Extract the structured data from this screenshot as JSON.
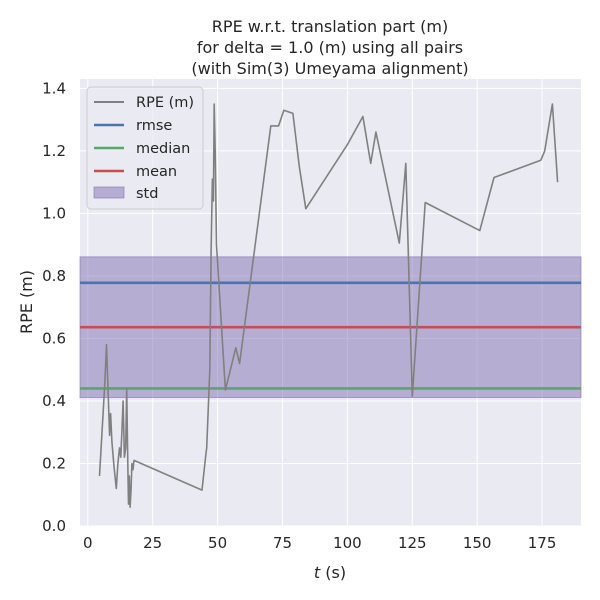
{
  "chart_data": {
    "type": "line",
    "title_lines": [
      "RPE w.r.t. translation part (m)",
      "for delta = 1.0 (m) using all pairs",
      "(with Sim(3) Umeyama alignment)"
    ],
    "xlabel_italic": "t",
    "xlabel_unit": " (s)",
    "ylabel": "RPE (m)",
    "xlim": [
      -3,
      190
    ],
    "ylim": [
      0,
      1.43
    ],
    "xticks": [
      0,
      25,
      50,
      75,
      100,
      125,
      150,
      175
    ],
    "yticks": [
      0.0,
      0.2,
      0.4,
      0.6,
      0.8,
      1.0,
      1.2,
      1.4
    ],
    "xtick_labels": [
      "0",
      "25",
      "50",
      "75",
      "100",
      "125",
      "150",
      "175"
    ],
    "ytick_labels": [
      "0.0",
      "0.2",
      "0.4",
      "0.6",
      "0.8",
      "1.0",
      "1.2",
      "1.4"
    ],
    "grid": true,
    "legend_position": "top-left",
    "series": [
      {
        "name": "RPE (m)",
        "color": "#808080",
        "x": [
          4.5,
          6.5,
          7.2,
          8.4,
          8.8,
          9.3,
          10.1,
          11.0,
          11.6,
          12.2,
          12.7,
          13.2,
          13.6,
          14.1,
          14.6,
          15.0,
          15.4,
          15.7,
          16.0,
          16.3,
          16.7,
          17.0,
          17.4,
          17.8,
          44.0,
          45.5,
          45.8,
          47.0,
          47.5,
          48.0,
          48.4,
          48.7,
          49.1,
          49.6,
          53.0,
          57.0,
          58.5,
          70.5,
          73.5,
          75.5,
          79.0,
          81.5,
          84.0,
          100.0,
          106.0,
          109.0,
          111.0,
          120.0,
          122.5,
          125.0,
          130.0,
          151.0,
          156.5,
          174.5,
          176.0,
          179.0,
          181.0
        ],
        "y": [
          0.16,
          0.45,
          0.58,
          0.29,
          0.36,
          0.27,
          0.19,
          0.12,
          0.2,
          0.25,
          0.22,
          0.32,
          0.4,
          0.22,
          0.25,
          0.44,
          0.2,
          0.07,
          0.16,
          0.06,
          0.12,
          0.2,
          0.18,
          0.21,
          0.115,
          0.23,
          0.25,
          0.5,
          0.88,
          1.11,
          1.04,
          1.35,
          1.2,
          0.9,
          0.435,
          0.57,
          0.52,
          1.28,
          1.28,
          1.33,
          1.32,
          1.15,
          1.015,
          1.22,
          1.31,
          1.16,
          1.26,
          0.905,
          1.16,
          0.415,
          1.035,
          0.945,
          1.115,
          1.17,
          1.2,
          1.35,
          1.1
        ]
      }
    ],
    "stats": {
      "rmse": {
        "name": "rmse",
        "value": 0.778,
        "color": "#4c72b0"
      },
      "median": {
        "name": "median",
        "value": 0.44,
        "color": "#55a868"
      },
      "mean": {
        "name": "mean",
        "value": 0.636,
        "color": "#c44e52"
      },
      "std": {
        "name": "std",
        "low": 0.411,
        "high": 0.861,
        "color": "#8172b2"
      }
    }
  }
}
